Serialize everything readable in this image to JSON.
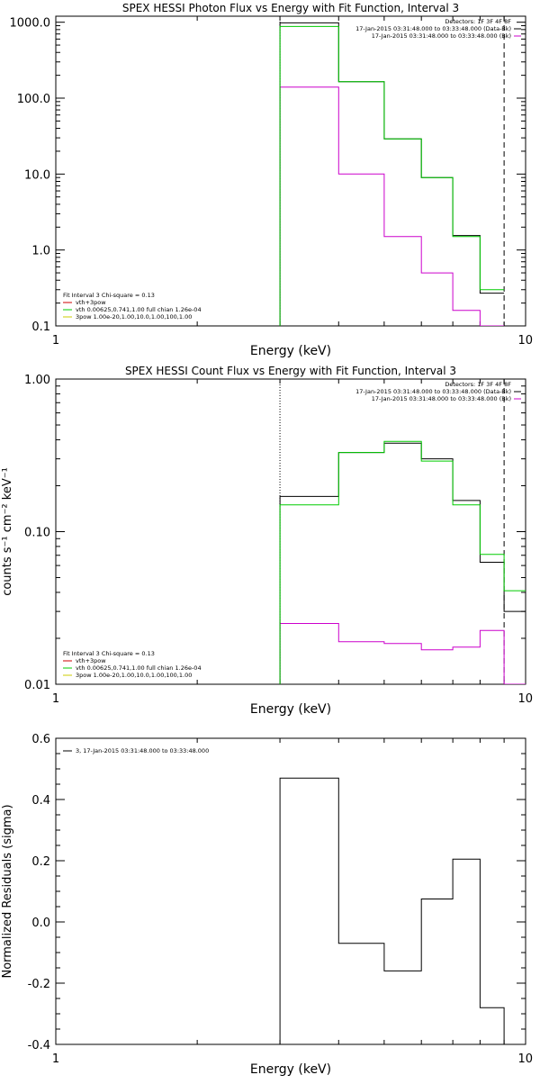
{
  "chart_data": [
    {
      "type": "line",
      "title": "SPEX HESSI Photon Flux vs Energy with Fit Function, Interval 3",
      "xlabel": "Energy (keV)",
      "ylabel": "",
      "xscale": "log",
      "yscale": "log",
      "xlim": [
        1,
        10
      ],
      "ylim": [
        0.1,
        1200
      ],
      "xticks": [
        {
          "v": 1,
          "label": "1"
        },
        {
          "v": 10,
          "label": "10"
        }
      ],
      "yticks": [
        {
          "v": 0.1,
          "label": "0.1"
        },
        {
          "v": 1,
          "label": "1.0"
        },
        {
          "v": 10,
          "label": "10.0"
        },
        {
          "v": 100,
          "label": "100.0"
        },
        {
          "v": 1000,
          "label": "1000.0"
        }
      ],
      "vlines": [
        {
          "x": 3.0,
          "style": "dotted",
          "color": "#000000"
        },
        {
          "x": 9.0,
          "style": "dashed",
          "color": "#000000"
        }
      ],
      "legend_tr": [
        "Detectors: 1F 3F 4F 8F",
        "17-Jan-2015 03:31:48.000 to 03:33:48.000 (Data-Bk)",
        "17-Jan-2015 03:31:48.000 to 03:33:48.000 (Bk)"
      ],
      "legend_tr_colors": [
        "",
        "#000000",
        "#cc00cc"
      ],
      "legend_bl": [
        "Fit Interval 3   Chi-square = 0.13",
        "vth+3pow",
        "vth 0.00625,0.741,1.00  full chian 1.26e-04",
        "3pow 1.00e-20,1.00,10.0,1.00,100,1.00"
      ],
      "legend_bl_colors": [
        "",
        "#cc0000",
        "#00cc00",
        "#cccc00"
      ],
      "bin_edges": [
        3.0,
        4.0,
        5.0,
        6.0,
        7.0,
        8.0,
        9.0
      ],
      "series": [
        {
          "color": "#cc00cc",
          "values": [
            140,
            10,
            1.5,
            0.5,
            0.16,
            0.1
          ]
        },
        {
          "color": "#000000",
          "values": [
            980,
            165,
            29,
            9,
            1.55,
            0.27
          ]
        },
        {
          "color": "#00cc00",
          "values": [
            880,
            165,
            29,
            9,
            1.5,
            0.3
          ]
        }
      ]
    },
    {
      "type": "line",
      "title": "SPEX HESSI Count Flux vs Energy with Fit Function, Interval 3",
      "xlabel": "Energy (keV)",
      "ylabel": "counts s⁻¹ cm⁻² keV⁻¹",
      "xscale": "log",
      "yscale": "log",
      "xlim": [
        1,
        10
      ],
      "ylim": [
        0.01,
        1.0
      ],
      "xticks": [
        {
          "v": 1,
          "label": "1"
        },
        {
          "v": 10,
          "label": "10"
        }
      ],
      "yticks": [
        {
          "v": 0.01,
          "label": "0.01"
        },
        {
          "v": 0.1,
          "label": "0.10"
        },
        {
          "v": 1,
          "label": "1.00"
        }
      ],
      "vlines": [
        {
          "x": 3.0,
          "style": "dotted",
          "color": "#000000"
        },
        {
          "x": 9.0,
          "style": "dashed",
          "color": "#000000"
        }
      ],
      "legend_tr": [
        "Detectors: 1F 3F 4F 8F",
        "17-Jan-2015 03:31:48.000 to 03:33:48.000 (Data-Bk)",
        "17-Jan-2015 03:31:48.000 to 03:33:48.000 (Bk)"
      ],
      "legend_tr_colors": [
        "",
        "#000000",
        "#cc00cc"
      ],
      "legend_bl": [
        "Fit Interval 3   Chi-square = 0.13",
        "vth+3pow",
        "vth 0.00625,0.741,1.00  full chian 1.26e-04",
        "3pow 1.00e-20,1.00,10.0,1.00,100,1.00"
      ],
      "legend_bl_colors": [
        "",
        "#cc0000",
        "#00cc00",
        "#cccc00"
      ],
      "bin_edges": [
        3.0,
        4.0,
        5.0,
        6.0,
        7.0,
        8.0,
        9.0,
        10.0
      ],
      "series": [
        {
          "color": "#cc00cc",
          "values": [
            0.025,
            0.019,
            0.0185,
            0.0168,
            0.0175,
            0.0225,
            0.01
          ]
        },
        {
          "color": "#000000",
          "values": [
            0.17,
            0.33,
            0.38,
            0.3,
            0.16,
            0.063,
            0.03
          ]
        },
        {
          "color": "#00cc00",
          "values": [
            0.15,
            0.33,
            0.39,
            0.29,
            0.15,
            0.071,
            0.041
          ]
        }
      ]
    },
    {
      "type": "line",
      "title": "",
      "xlabel": "Energy (keV)",
      "ylabel": "Normalized Residuals (sigma)",
      "xscale": "log",
      "yscale": "linear",
      "xlim": [
        1,
        10
      ],
      "ylim": [
        -0.4,
        0.6
      ],
      "xticks": [
        {
          "v": 1,
          "label": "1"
        },
        {
          "v": 10,
          "label": "10"
        }
      ],
      "yticks": [
        {
          "v": -0.4,
          "label": "-0.4"
        },
        {
          "v": -0.2,
          "label": "-0.2"
        },
        {
          "v": 0.0,
          "label": "0.0"
        },
        {
          "v": 0.2,
          "label": "0.2"
        },
        {
          "v": 0.4,
          "label": "0.4"
        },
        {
          "v": 0.6,
          "label": "0.6"
        }
      ],
      "vlines": [],
      "legend_tl": [
        "3, 17-Jan-2015 03:31:48.000 to 03:33:48.000"
      ],
      "bin_edges": [
        3.0,
        4.0,
        5.0,
        6.0,
        7.0,
        8.0,
        9.0
      ],
      "series": [
        {
          "color": "#000000",
          "values": [
            0.47,
            -0.07,
            -0.16,
            0.075,
            0.205,
            -0.28
          ]
        }
      ]
    }
  ]
}
